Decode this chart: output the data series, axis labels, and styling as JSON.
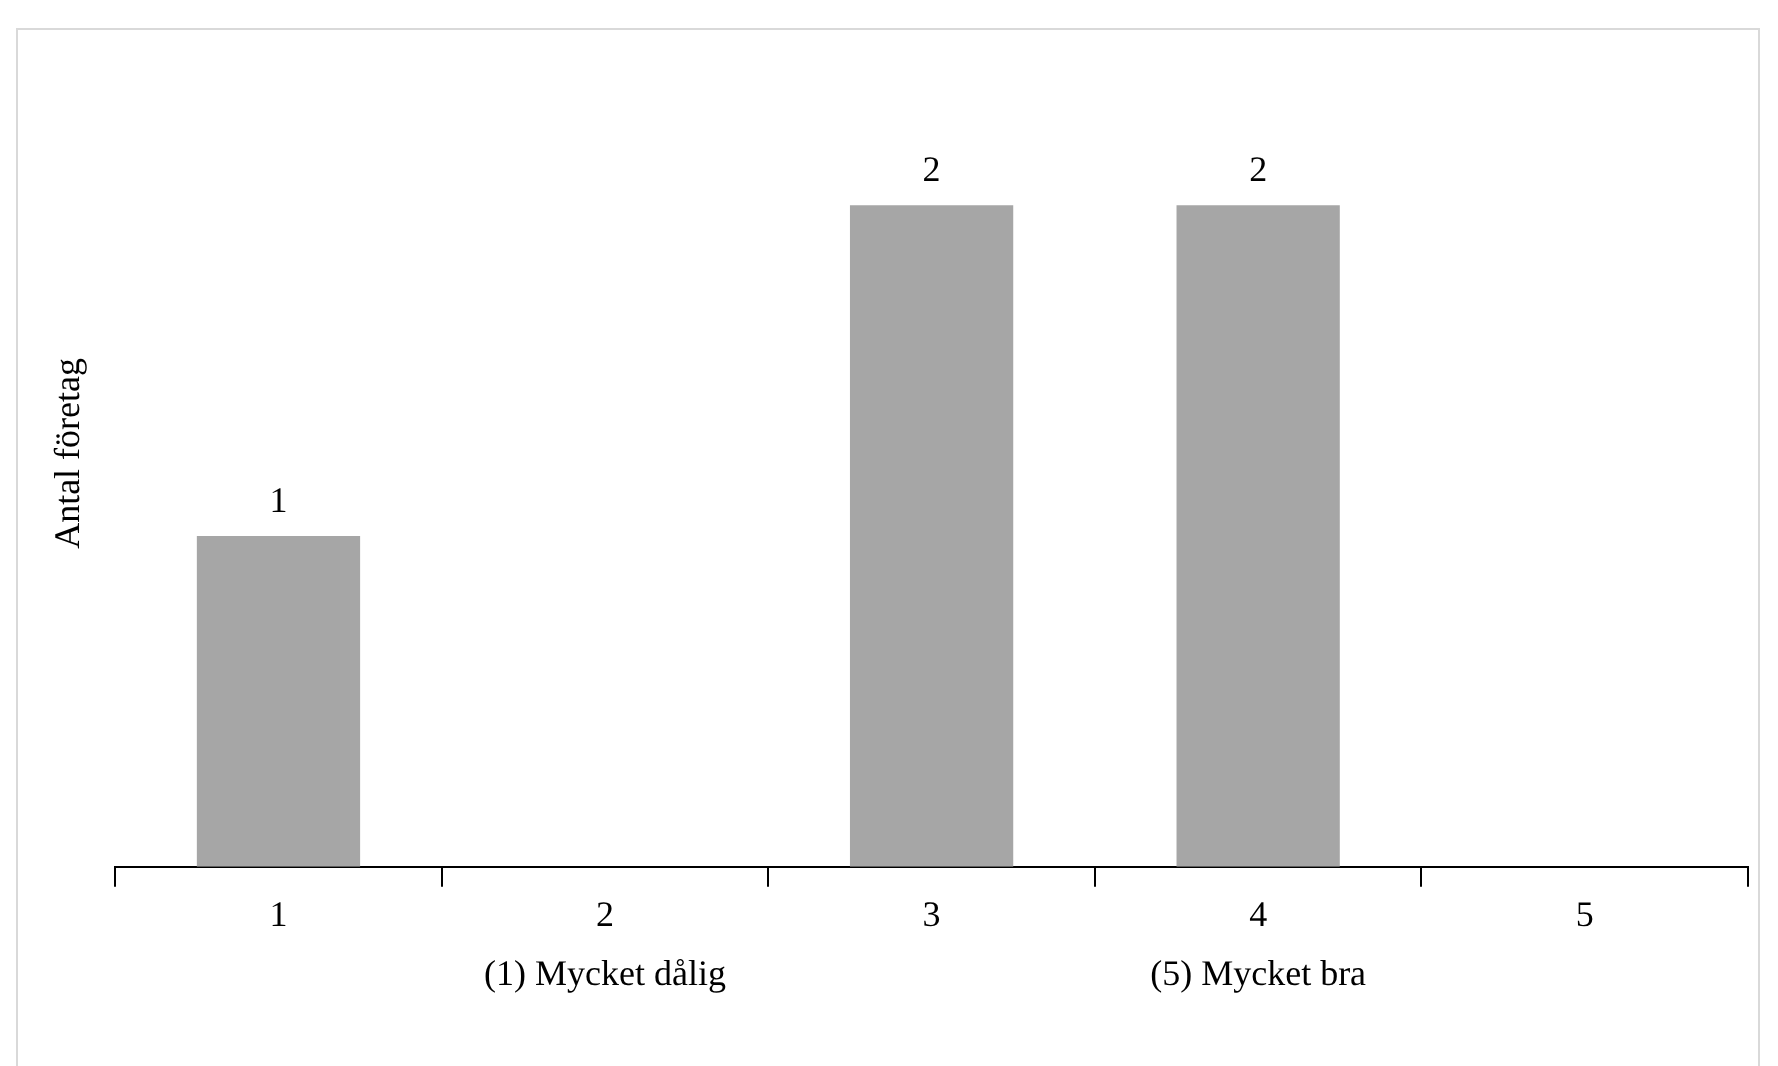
{
  "chart_data": {
    "type": "bar",
    "ylabel": "Antal företag",
    "categories": [
      "1",
      "2",
      "3",
      "4",
      "5"
    ],
    "values": [
      1,
      0,
      2,
      2,
      0
    ],
    "color": "#a6a6a6",
    "value_labels": [
      "1",
      null,
      "2",
      "2",
      null
    ],
    "tick_labels": "x",
    "grid": false,
    "legend": false,
    "annotations": [
      "(1) Mycket dålig",
      "(5) Mycket bra"
    ]
  }
}
